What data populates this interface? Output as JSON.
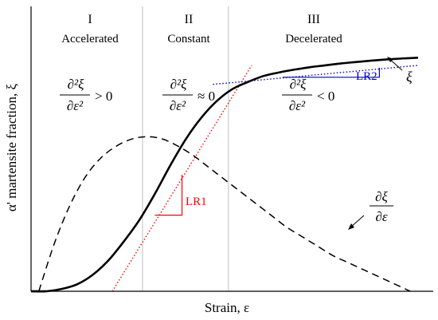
{
  "figure": {
    "y_axis_label": "α' martensite fraction, ξ",
    "x_axis_label": "Strain, ε"
  },
  "regions": [
    {
      "numeral": "I",
      "name": "Accelerated",
      "condition": {
        "numerator": "∂²ξ",
        "denominator": "∂ε²",
        "relation": "> 0"
      }
    },
    {
      "numeral": "II",
      "name": "Constant",
      "condition": {
        "numerator": "∂²ξ",
        "denominator": "∂ε²",
        "relation": "≈ 0"
      }
    },
    {
      "numeral": "III",
      "name": "Decelerated",
      "condition": {
        "numerator": "∂²ξ",
        "denominator": "∂ε²",
        "relation": "< 0"
      }
    }
  ],
  "colors": {
    "curve": "#000000",
    "boundary": "#bfbfbf",
    "lr1": "#ff0000",
    "lr2": "#0000cc"
  },
  "chart_data": {
    "type": "line",
    "xlabel": "Strain, ε",
    "ylabel": "α' martensite fraction, ξ",
    "xlim": [
      0,
      1
    ],
    "ylim": [
      0,
      1
    ],
    "region_boundaries_x": [
      0.288,
      0.51
    ],
    "series": [
      {
        "name": "ξ",
        "style": "solid",
        "x": [
          0.0,
          0.04,
          0.08,
          0.12,
          0.16,
          0.2,
          0.24,
          0.28,
          0.32,
          0.36,
          0.4,
          0.44,
          0.48,
          0.52,
          0.56,
          0.6,
          0.64,
          0.68,
          0.72,
          0.76,
          0.8,
          0.84,
          0.88,
          0.92,
          0.96,
          1.0
        ],
        "y": [
          0.0,
          0.0,
          0.01,
          0.03,
          0.07,
          0.13,
          0.21,
          0.3,
          0.41,
          0.53,
          0.64,
          0.73,
          0.8,
          0.85,
          0.88,
          0.905,
          0.92,
          0.932,
          0.942,
          0.95,
          0.958,
          0.964,
          0.97,
          0.975,
          0.979,
          0.982
        ]
      },
      {
        "name": "∂ξ/∂ε",
        "style": "dashed",
        "x": [
          0.02,
          0.06,
          0.1,
          0.14,
          0.18,
          0.22,
          0.26,
          0.3,
          0.34,
          0.38,
          0.42,
          0.46,
          0.5,
          0.54,
          0.58,
          0.62,
          0.66,
          0.7,
          0.74,
          0.78,
          0.82,
          0.86,
          0.9,
          0.94,
          0.98
        ],
        "y": [
          0.0,
          0.2,
          0.36,
          0.48,
          0.56,
          0.61,
          0.64,
          0.65,
          0.64,
          0.61,
          0.57,
          0.52,
          0.47,
          0.42,
          0.37,
          0.32,
          0.27,
          0.23,
          0.19,
          0.15,
          0.12,
          0.09,
          0.06,
          0.03,
          0.0
        ]
      }
    ],
    "tangents": [
      {
        "label": "LR1",
        "color": "#ff0000",
        "style": "dotted",
        "from": [
          0.21,
          0.0
        ],
        "to": [
          0.57,
          0.95
        ],
        "slope_triangle": {
          "x": [
            0.32,
            0.39
          ],
          "y": [
            0.32,
            0.49
          ]
        }
      },
      {
        "label": "LR2",
        "color": "#0000cc",
        "style": "dotted",
        "from": [
          0.47,
          0.87
        ],
        "to": [
          1.0,
          0.95
        ],
        "slope_triangle": {
          "x": [
            0.65,
            0.9
          ],
          "y": [
            0.9,
            0.94
          ]
        }
      }
    ],
    "annotations": [
      {
        "text": "ξ",
        "target": "solid curve"
      },
      {
        "text": "∂ξ/∂ε",
        "target": "dashed curve"
      }
    ]
  }
}
